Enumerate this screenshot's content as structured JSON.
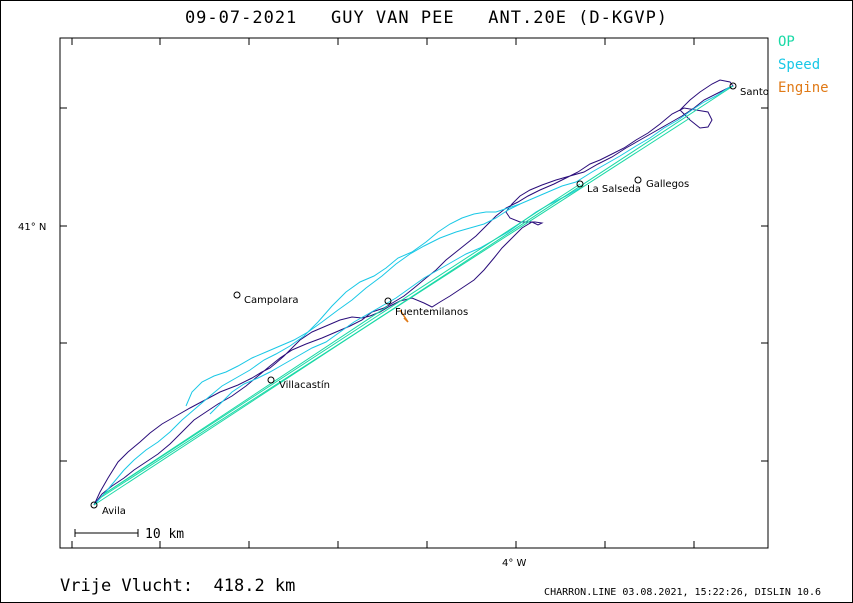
{
  "title": "09-07-2021   GUY VAN PEE   ANT.20E (D-KGVP)",
  "legend": [
    {
      "label": "OP",
      "color": "#19d9a6"
    },
    {
      "label": "Speed",
      "color": "#19c8e6"
    },
    {
      "label": "Engine",
      "color": "#e07a17"
    }
  ],
  "axes": {
    "lat_label": "41° N",
    "lon_label": "4° W"
  },
  "places": [
    {
      "name": "Santo",
      "label": "Santo"
    },
    {
      "name": "La Salseda",
      "label": "La Salseda"
    },
    {
      "name": "Gallegos",
      "label": "Gallegos"
    },
    {
      "name": "Campolara",
      "label": "Campolara"
    },
    {
      "name": "Fuentemilanos",
      "label": "Fuentemilanos"
    },
    {
      "name": "Villacastín",
      "label": "Villacastín"
    },
    {
      "name": "Avila",
      "label": "Avila"
    }
  ],
  "scale": {
    "label": "10 km"
  },
  "footer": {
    "distance": "Vrije Vlucht:  418.2 km",
    "credit": "CHARRON.LINE 03.08.2021, 15:22:26, DISLIN 10.6"
  },
  "colors": {
    "track": "#2a0d7a",
    "op_line": "#19d9a6",
    "speed_track": "#19c8e6",
    "engine": "#e07a17"
  }
}
